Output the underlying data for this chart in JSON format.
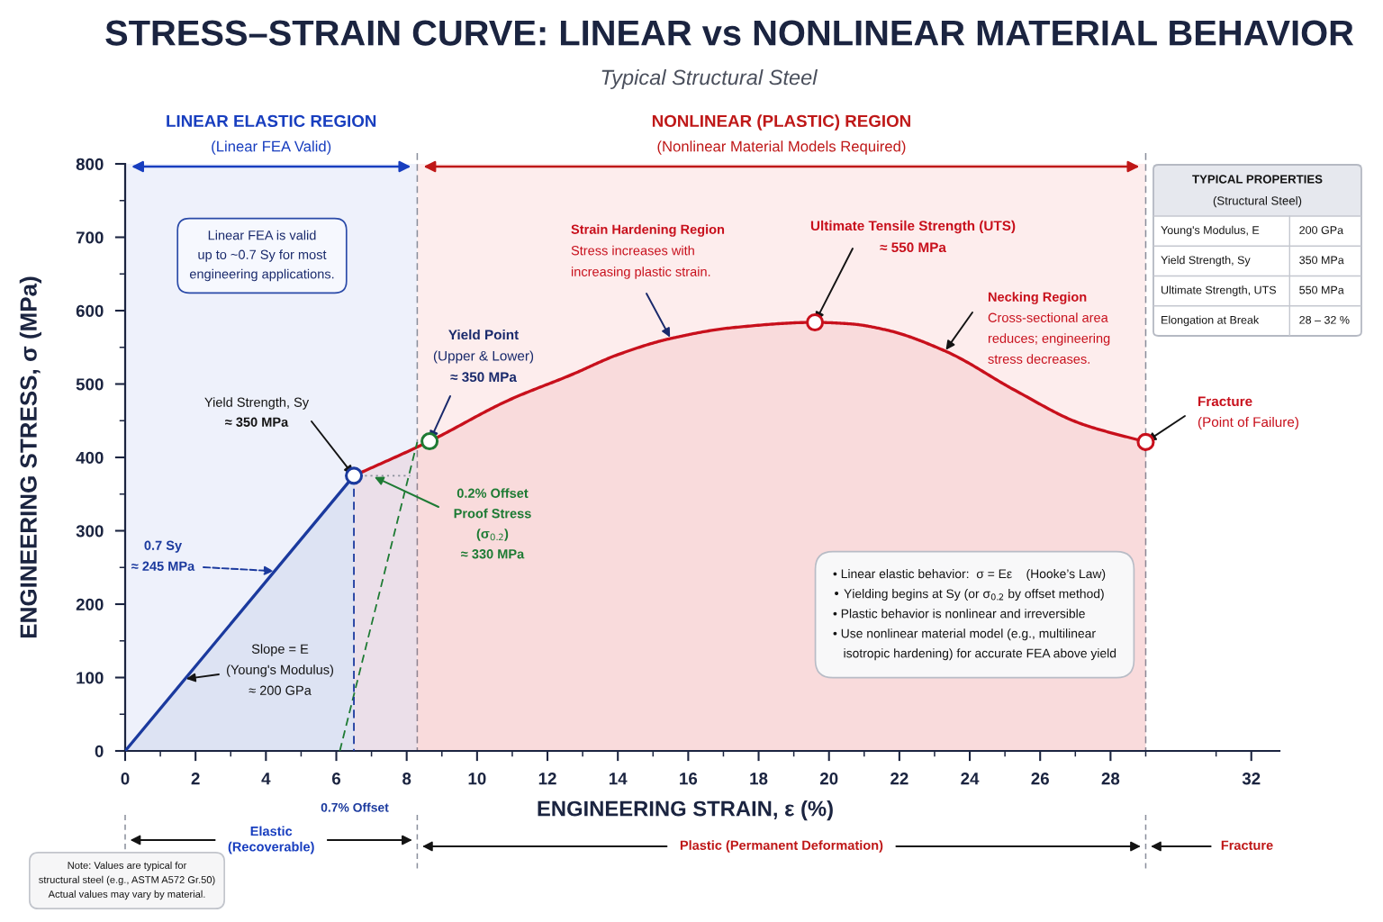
{
  "chart_data": [
    {
      "type": "line",
      "title": "STRESS–STRAIN CURVE: LINEAR vs NONLINEAR MATERIAL BEHAVIOR",
      "subtitle": "Typical Structural Steel",
      "xlabel": "ENGINEERING STRAIN, ε (%)",
      "ylabel": "ENGINEERING STRESS, σ (MPa)",
      "xlim": [
        0,
        32.8
      ],
      "ylim": [
        0,
        800
      ],
      "xticks": [
        0,
        {
          "value": 1,
          "label": null
        },
        2,
        {
          "value": 3,
          "label": null
        },
        4,
        {
          "value": 5,
          "label": null
        },
        6,
        {
          "value": 7,
          "label": null
        },
        8,
        {
          "value": 9,
          "label": null
        },
        10,
        {
          "value": 11,
          "label": null
        },
        12,
        {
          "value": 13,
          "label": null
        },
        14,
        {
          "value": 15,
          "label": null
        },
        16,
        {
          "value": 17,
          "label": null
        },
        18,
        {
          "value": 19,
          "label": null
        },
        20,
        {
          "value": 21,
          "label": null
        },
        22,
        {
          "value": 23,
          "label": null
        },
        24,
        {
          "value": 25,
          "label": null
        },
        26,
        {
          "value": 27,
          "label": null
        },
        28,
        {
          "value": 29,
          "label": null
        },
        {
          "value": 31,
          "label": null
        },
        32
      ],
      "yticks": [
        0,
        {
          "value": 50,
          "label": null
        },
        100,
        {
          "value": 150,
          "label": null
        },
        200,
        {
          "value": 250,
          "label": null
        },
        300,
        {
          "value": 350,
          "label": null
        },
        400,
        {
          "value": 450,
          "label": null
        },
        500,
        {
          "value": 550,
          "label": null
        },
        600,
        {
          "value": 650,
          "label": null
        },
        700,
        {
          "value": 750,
          "label": null
        },
        800
      ],
      "bands": [
        {
          "axis": "x",
          "from": 0,
          "to": 8.3,
          "label": "LINEAR ELASTIC REGION\n(Linear FEA Valid)",
          "color": "#eef1fb"
        },
        {
          "axis": "x",
          "from": 8.3,
          "to": 29,
          "label": "NONLINEAR (PLASTIC) REGION\n(Nonlinear Material Models Required)",
          "color": "#fdeded"
        }
      ],
      "ref_lines": [
        {
          "axis": "x",
          "value": 8.3,
          "color": "#8a8f9c",
          "line_style": "dashed"
        },
        {
          "axis": "x",
          "value": 29,
          "color": "#8a8f9c",
          "line_style": "dashed"
        }
      ],
      "series": [
        {
          "type": "area",
          "color": "#1b3a9e",
          "x": [
            0,
            6.5
          ],
          "values": [
            0,
            375
          ]
        },
        {
          "type": "area",
          "color": "#c8101c",
          "x": [
            6.5,
            8.65,
            10.9,
            12.7,
            14,
            15.5,
            17.3,
            19.6,
            20.6,
            21.6,
            23.3,
            25.3,
            27.1,
            29
          ],
          "values": [
            375,
            422,
            478,
            513,
            540,
            562,
            577,
            584,
            582,
            574,
            545,
            491,
            447,
            421
          ]
        },
        {
          "type": "line",
          "color": "#1e7b34",
          "line_style": "dashed",
          "x": [
            6.1,
            8.3
          ],
          "values": [
            0,
            421
          ]
        },
        {
          "type": "line",
          "color": "#1b3a9e",
          "line_style": "dashed",
          "x": [
            6.5,
            6.5
          ],
          "values": [
            375,
            0
          ]
        },
        {
          "type": "line",
          "color": "#8a8f9c",
          "line_style": "dotted",
          "x": [
            6.5,
            8.1
          ],
          "values": [
            375,
            375
          ]
        },
        {
          "type": "scatter",
          "marker": "circle",
          "x": [
            6.5,
            8.65,
            19.6,
            29
          ],
          "values": [
            375,
            422,
            584,
            421
          ],
          "colors": [
            "#1b3a9e",
            "#1e7b34",
            "#c8101c",
            "#c8101c"
          ]
        }
      ],
      "annotations": [
        "Linear FEA is valid\nup to ~0.7 Sy for most\nengineering applications.",
        {
          "text": "Yield Strength, Sy\n≈ 350 MPa",
          "x": 6.5,
          "y": 375
        },
        {
          "text": "Yield Point\n(Upper & Lower)\n≈ 350 MPa",
          "x": 8.65,
          "y": 422
        },
        {
          "text": "0.2% Offset\nProof Stress\n(σ$_{0.2}$)\n≈ 330 MPa",
          "x": 7.05,
          "y": 374
        },
        {
          "text": "Strain Hardening Region\nStress increases with\nincreasing plastic strain.",
          "x": 15.5,
          "y": 562
        },
        {
          "text": "Ultimate Tensile Strength (UTS)\n≈ 550 MPa",
          "x": 19.6,
          "y": 584
        },
        {
          "text": "Necking Region\nCross-sectional area\nreduces; engineering\nstress decreases.",
          "x": 23.3,
          "y": 545
        },
        {
          "text": "Fracture\n(Point of Failure)",
          "x": 29,
          "y": 421
        },
        {
          "text": "0.7 Sy\n≈ 245 MPa",
          "x": 4.25,
          "y": 245
        },
        {
          "text": "Slope = E\n(Young's Modulus)\n≈ 200 GPa",
          "x": 1.7,
          "y": 98
        },
        "0.7% Offset",
        "• Linear elastic behavior:  σ = Eε    (Hooke’s Law)\n• Yielding begins at Sy (or σ$_{0.2}$ by offset method)\n• Plastic behavior is nonlinear and irreversible\n• Use nonlinear material model (e.g., multilinear\n   isotropic hardening) for accurate FEA above yield",
        "Note: Values are typical for\nstructural steel (e.g., ASTM A572 Gr.50)\nActual values may vary by material.",
        "Elastic\n(Recoverable)",
        "Plastic (Permanent Deformation)",
        "Fracture"
      ]
    },
    {
      "type": "other",
      "title": "TYPICAL PROPERTIES",
      "subtitle": "(Structural Steel)",
      "annotations": [
        "Young's Modulus, E",
        "200 GPa",
        "Yield Strength, Sy",
        "350 MPa",
        "Ultimate Strength, UTS",
        "550 MPa",
        "Elongation at Break",
        "28 – 32 %"
      ]
    }
  ]
}
